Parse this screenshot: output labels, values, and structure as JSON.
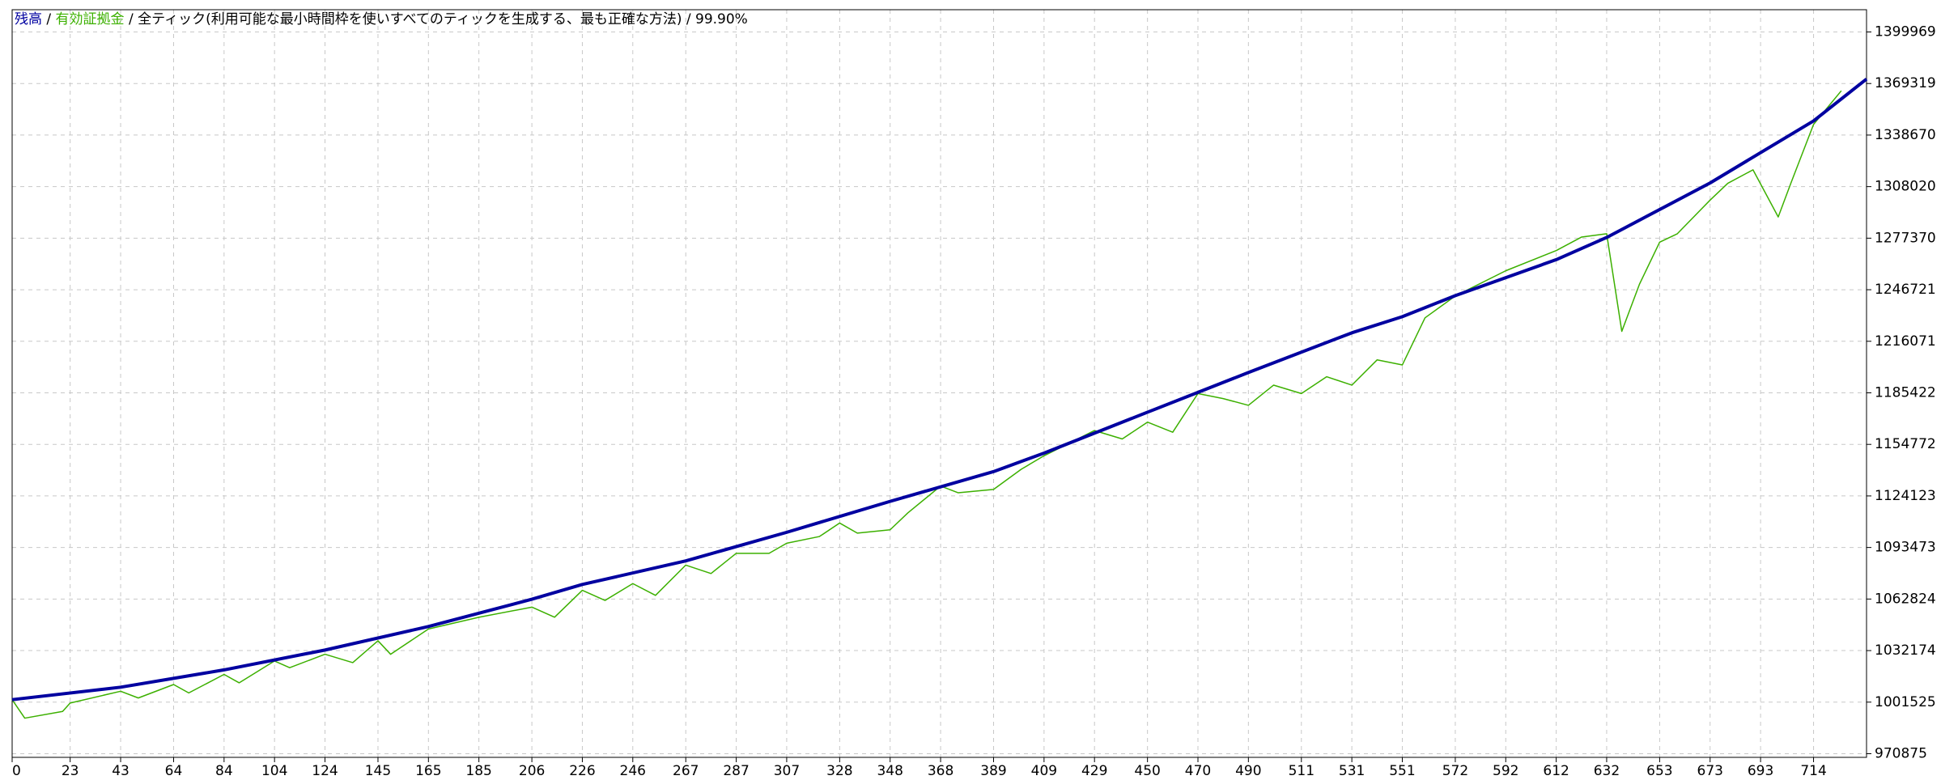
{
  "chart_data": {
    "type": "line",
    "header": [
      {
        "text": "残高",
        "color": "#0000a0"
      },
      {
        "text": " / ",
        "color": "#000000"
      },
      {
        "text": "有効証拠金",
        "color": "#3cb000"
      },
      {
        "text": " / ",
        "color": "#000000"
      },
      {
        "text": "全ティック(利用可能な最小時間枠を使いすべてのティックを生成する、最も正確な方法)",
        "color": "#000000"
      },
      {
        "text": " / ",
        "color": "#000000"
      },
      {
        "text": "99.90%",
        "color": "#000000"
      }
    ],
    "xlim": [
      0,
      735
    ],
    "ylim": [
      968700,
      1413200
    ],
    "xticks": [
      0,
      23,
      43,
      64,
      84,
      104,
      124,
      145,
      165,
      185,
      206,
      226,
      246,
      267,
      287,
      307,
      328,
      348,
      368,
      389,
      409,
      429,
      450,
      470,
      490,
      511,
      531,
      551,
      572,
      592,
      612,
      632,
      653,
      673,
      693,
      714
    ],
    "yticks": [
      970875,
      1001525,
      1032174,
      1062824,
      1093473,
      1124123,
      1154772,
      1185422,
      1216071,
      1246721,
      1277370,
      1308020,
      1338670,
      1369319,
      1399969
    ],
    "grid": true,
    "series": [
      {
        "color": "#3cb000",
        "width": 1.5,
        "x": [
          0,
          5,
          20,
          23,
          43,
          50,
          64,
          70,
          84,
          90,
          104,
          110,
          124,
          135,
          145,
          150,
          165,
          185,
          206,
          215,
          226,
          235,
          246,
          255,
          267,
          277,
          287,
          300,
          307,
          320,
          328,
          335,
          348,
          355,
          368,
          375,
          389,
          400,
          409,
          429,
          440,
          450,
          460,
          470,
          480,
          490,
          500,
          511,
          521,
          531,
          541,
          551,
          560,
          572,
          592,
          612,
          622,
          632,
          638,
          645,
          653,
          660,
          673,
          680,
          690,
          700,
          705,
          714,
          725
        ],
        "values": [
          1003000,
          992000,
          996000,
          1001000,
          1008000,
          1004000,
          1012000,
          1007000,
          1018000,
          1013000,
          1026000,
          1022000,
          1030000,
          1025000,
          1038000,
          1030000,
          1045000,
          1052000,
          1058000,
          1052000,
          1068000,
          1062000,
          1072000,
          1065000,
          1083000,
          1078000,
          1090000,
          1090000,
          1096000,
          1100000,
          1108000,
          1102000,
          1104000,
          1114000,
          1130000,
          1126000,
          1128000,
          1140000,
          1148000,
          1163000,
          1158000,
          1168000,
          1162000,
          1185000,
          1182000,
          1178000,
          1190000,
          1185000,
          1195000,
          1190000,
          1205000,
          1202000,
          1230000,
          1243000,
          1258000,
          1270000,
          1278000,
          1280000,
          1222000,
          1250000,
          1275000,
          1280000,
          1300000,
          1310000,
          1318000,
          1290000,
          1310000,
          1345000,
          1365000
        ]
      },
      {
        "color": "#0000a0",
        "width": 4,
        "x": [
          0,
          43,
          84,
          124,
          165,
          206,
          226,
          267,
          307,
          348,
          389,
          409,
          450,
          490,
          531,
          551,
          572,
          612,
          632,
          673,
          714,
          735
        ],
        "values": [
          1003000,
          1010400,
          1020700,
          1032500,
          1046500,
          1062700,
          1071500,
          1085500,
          1102500,
          1120900,
          1138600,
          1149600,
          1173900,
          1197500,
          1221100,
          1230700,
          1243200,
          1264600,
          1277800,
          1310200,
          1347100,
          1372000
        ]
      }
    ]
  }
}
